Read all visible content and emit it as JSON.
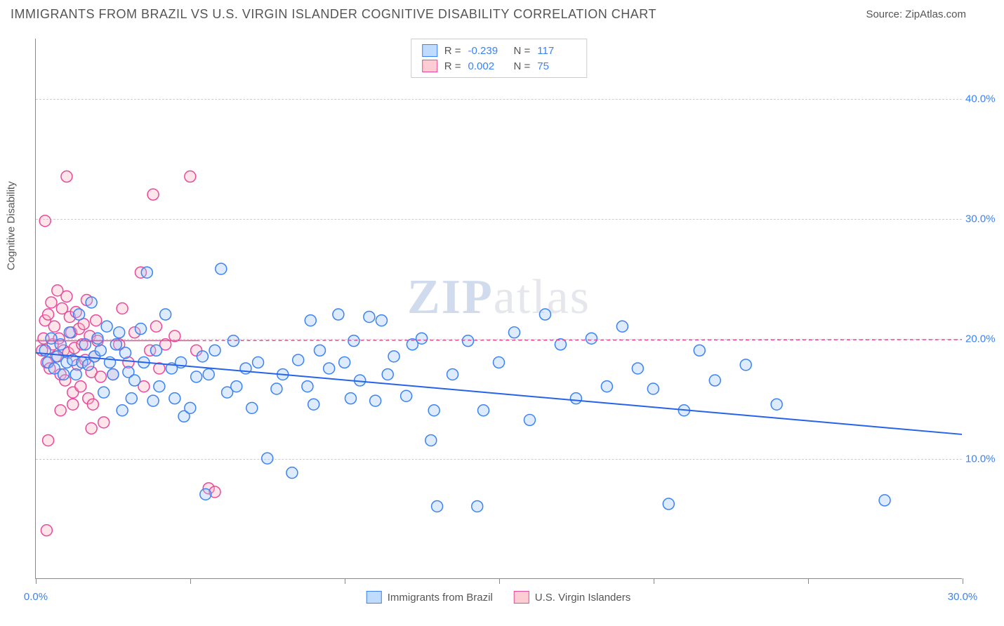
{
  "header": {
    "title": "IMMIGRANTS FROM BRAZIL VS U.S. VIRGIN ISLANDER COGNITIVE DISABILITY CORRELATION CHART",
    "source": "Source: ZipAtlas.com"
  },
  "chart": {
    "type": "scatter",
    "y_axis_label": "Cognitive Disability",
    "xlim": [
      0,
      30
    ],
    "ylim": [
      0,
      45
    ],
    "x_ticks": [
      0,
      5,
      10,
      15,
      20,
      25,
      30
    ],
    "x_tick_labels": {
      "0": "0.0%",
      "30": "30.0%"
    },
    "y_gridlines": [
      10,
      20,
      30,
      40
    ],
    "y_tick_labels": {
      "10": "10.0%",
      "20": "20.0%",
      "30": "30.0%",
      "40": "40.0%"
    },
    "background_color": "#ffffff",
    "grid_color": "#cccccc",
    "axis_color": "#888888",
    "tick_label_color": "#3b82f6",
    "marker_radius": 8,
    "marker_stroke_width": 1.5,
    "marker_fill_opacity": 0.35,
    "series": [
      {
        "name": "Immigrants from Brazil",
        "fill_color": "#9fc5f8",
        "stroke_color": "#3b82f6",
        "R": "-0.239",
        "N": "117",
        "trend": {
          "x1": 0,
          "y1": 18.8,
          "x2": 30,
          "y2": 12.0,
          "color": "#2563eb",
          "width": 2,
          "dash": "none"
        },
        "points": [
          [
            0.3,
            19
          ],
          [
            0.4,
            18
          ],
          [
            0.5,
            20
          ],
          [
            0.6,
            17.5
          ],
          [
            0.7,
            18.5
          ],
          [
            0.8,
            19.5
          ],
          [
            0.9,
            17
          ],
          [
            1.0,
            18
          ],
          [
            1.1,
            20.5
          ],
          [
            1.2,
            18.2
          ],
          [
            1.3,
            17
          ],
          [
            1.4,
            22
          ],
          [
            1.5,
            18
          ],
          [
            1.6,
            19.5
          ],
          [
            1.7,
            17.8
          ],
          [
            1.8,
            23
          ],
          [
            1.9,
            18.5
          ],
          [
            2.0,
            20
          ],
          [
            2.1,
            19
          ],
          [
            2.2,
            15.5
          ],
          [
            2.3,
            21
          ],
          [
            2.4,
            18
          ],
          [
            2.5,
            17
          ],
          [
            2.6,
            19.5
          ],
          [
            2.7,
            20.5
          ],
          [
            2.8,
            14
          ],
          [
            2.9,
            18.8
          ],
          [
            3.0,
            17.2
          ],
          [
            3.1,
            15
          ],
          [
            3.2,
            16.5
          ],
          [
            3.4,
            20.8
          ],
          [
            3.5,
            18
          ],
          [
            3.6,
            25.5
          ],
          [
            3.8,
            14.8
          ],
          [
            3.9,
            19
          ],
          [
            4.0,
            16
          ],
          [
            4.2,
            22
          ],
          [
            4.4,
            17.5
          ],
          [
            4.5,
            15
          ],
          [
            4.7,
            18
          ],
          [
            4.8,
            13.5
          ],
          [
            5.0,
            14.2
          ],
          [
            5.2,
            16.8
          ],
          [
            5.4,
            18.5
          ],
          [
            5.5,
            7
          ],
          [
            5.6,
            17
          ],
          [
            5.8,
            19
          ],
          [
            6.0,
            25.8
          ],
          [
            6.2,
            15.5
          ],
          [
            6.4,
            19.8
          ],
          [
            6.5,
            16
          ],
          [
            6.8,
            17.5
          ],
          [
            7.0,
            14.2
          ],
          [
            7.2,
            18
          ],
          [
            7.5,
            10
          ],
          [
            7.8,
            15.8
          ],
          [
            8.0,
            17
          ],
          [
            8.3,
            8.8
          ],
          [
            8.5,
            18.2
          ],
          [
            8.8,
            16
          ],
          [
            8.9,
            21.5
          ],
          [
            9.0,
            14.5
          ],
          [
            9.2,
            19
          ],
          [
            9.5,
            17.5
          ],
          [
            9.8,
            22
          ],
          [
            10,
            18
          ],
          [
            10.2,
            15
          ],
          [
            10.3,
            19.8
          ],
          [
            10.5,
            16.5
          ],
          [
            10.8,
            21.8
          ],
          [
            11,
            14.8
          ],
          [
            11.2,
            21.5
          ],
          [
            11.4,
            17
          ],
          [
            11.6,
            18.5
          ],
          [
            12,
            15.2
          ],
          [
            12.2,
            19.5
          ],
          [
            12.5,
            20
          ],
          [
            12.8,
            11.5
          ],
          [
            12.9,
            14
          ],
          [
            13,
            6
          ],
          [
            13.5,
            17
          ],
          [
            14,
            19.8
          ],
          [
            14.3,
            6
          ],
          [
            14.5,
            14
          ],
          [
            15,
            18
          ],
          [
            15.5,
            20.5
          ],
          [
            16,
            13.2
          ],
          [
            16.5,
            22
          ],
          [
            17,
            19.5
          ],
          [
            17.5,
            15
          ],
          [
            18,
            20
          ],
          [
            18.5,
            16
          ],
          [
            19,
            21
          ],
          [
            19.5,
            17.5
          ],
          [
            20,
            15.8
          ],
          [
            20.5,
            6.2
          ],
          [
            21,
            14
          ],
          [
            21.5,
            19
          ],
          [
            22,
            16.5
          ],
          [
            23,
            17.8
          ],
          [
            24,
            14.5
          ],
          [
            27.5,
            6.5
          ]
        ]
      },
      {
        "name": "U.S. Virgin Islanders",
        "fill_color": "#f8b4c4",
        "stroke_color": "#ec4899",
        "R": "0.002",
        "N": "75",
        "trend": {
          "x1": 0,
          "y1": 19.8,
          "x2": 30,
          "y2": 19.9,
          "color": "#ec4899",
          "width": 1.5,
          "dash": "4,3"
        },
        "trend_solid_until": 5.2,
        "points": [
          [
            0.2,
            19
          ],
          [
            0.25,
            20
          ],
          [
            0.3,
            21.5
          ],
          [
            0.35,
            18
          ],
          [
            0.4,
            22
          ],
          [
            0.45,
            17.5
          ],
          [
            0.5,
            23
          ],
          [
            0.55,
            19.5
          ],
          [
            0.6,
            21
          ],
          [
            0.65,
            18.5
          ],
          [
            0.7,
            24
          ],
          [
            0.75,
            20
          ],
          [
            0.8,
            17
          ],
          [
            0.85,
            22.5
          ],
          [
            0.9,
            19
          ],
          [
            0.95,
            16.5
          ],
          [
            1.0,
            23.5
          ],
          [
            1.05,
            18.8
          ],
          [
            1.1,
            21.8
          ],
          [
            1.15,
            20.5
          ],
          [
            1.2,
            15.5
          ],
          [
            1.25,
            19.2
          ],
          [
            1.3,
            22.2
          ],
          [
            1.35,
            17.8
          ],
          [
            1.4,
            20.8
          ],
          [
            1.45,
            16
          ],
          [
            1.5,
            19.5
          ],
          [
            1.55,
            21.2
          ],
          [
            1.6,
            18.2
          ],
          [
            1.65,
            23.2
          ],
          [
            1.7,
            15
          ],
          [
            1.75,
            20.2
          ],
          [
            1.8,
            17.2
          ],
          [
            1.85,
            14.5
          ],
          [
            1.9,
            18.5
          ],
          [
            1.95,
            21.5
          ],
          [
            2.0,
            19.8
          ],
          [
            2.1,
            16.8
          ],
          [
            2.2,
            13
          ],
          [
            0.3,
            29.8
          ],
          [
            0.35,
            4
          ],
          [
            0.4,
            11.5
          ],
          [
            0.8,
            14
          ],
          [
            1.0,
            33.5
          ],
          [
            1.2,
            14.5
          ],
          [
            1.8,
            12.5
          ],
          [
            2.5,
            17
          ],
          [
            2.7,
            19.5
          ],
          [
            2.8,
            22.5
          ],
          [
            3.0,
            18
          ],
          [
            3.2,
            20.5
          ],
          [
            3.4,
            25.5
          ],
          [
            3.5,
            16
          ],
          [
            3.7,
            19
          ],
          [
            3.8,
            32
          ],
          [
            3.9,
            21
          ],
          [
            4.0,
            17.5
          ],
          [
            4.2,
            19.5
          ],
          [
            4.5,
            20.2
          ],
          [
            5.0,
            33.5
          ],
          [
            5.2,
            19
          ],
          [
            5.6,
            7.5
          ],
          [
            5.8,
            7.2
          ]
        ]
      }
    ],
    "bottom_legend": [
      {
        "label": "Immigrants from Brazil",
        "fill": "#bfdbfe",
        "stroke": "#3b82f6"
      },
      {
        "label": "U.S. Virgin Islanders",
        "fill": "#fecdd3",
        "stroke": "#ec4899"
      }
    ],
    "watermark": {
      "text1": "ZIP",
      "text2": "atlas"
    }
  }
}
